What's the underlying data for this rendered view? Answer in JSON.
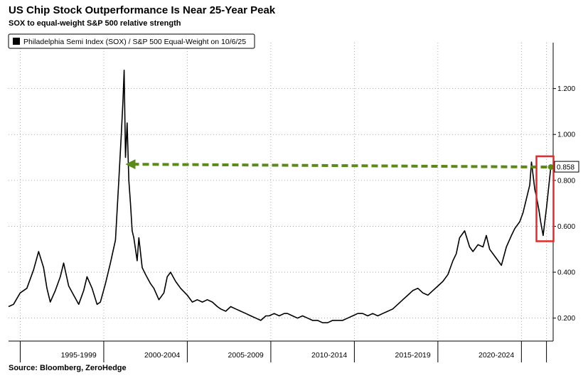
{
  "header": {
    "title": "US Chip Stock Outperformance Is Near 25-Year Peak",
    "subtitle": "SOX to equal-weight S&P 500 relative strength"
  },
  "source": "Source:  Bloomberg, ZeroHedge",
  "colors": {
    "series": "#000000",
    "arrow": "#5a8a17",
    "highlight_box": "#e32b2b"
  },
  "chart_data": {
    "type": "line",
    "title": "US Chip Stock Outperformance Is Near 25-Year Peak",
    "legend": "Philadelphia Semi Index (SOX) / S&P 500 Equal-Weight  on 10/6/25",
    "ylim": [
      0.1,
      1.4
    ],
    "yticks": [
      0.2,
      0.4,
      0.6,
      0.8,
      1.0,
      1.2
    ],
    "ytick_labels": [
      "0.200",
      "0.400",
      "0.600",
      "0.800",
      "1.000",
      "1.200"
    ],
    "xlim": [
      1993.3,
      2025.9
    ],
    "x_groups": [
      {
        "label": "1995-1999",
        "center": 1997.5
      },
      {
        "label": "2000-2004",
        "center": 2002.5
      },
      {
        "label": "2005-2009",
        "center": 2007.5
      },
      {
        "label": "2010-2014",
        "center": 2012.5
      },
      {
        "label": "2015-2019",
        "center": 2017.5
      },
      {
        "label": "2020-2024",
        "center": 2022.5
      }
    ],
    "x_boundaries": [
      1994.0,
      1999.0,
      2004.0,
      2009.0,
      2014.0,
      2019.0,
      2024.0,
      2025.5
    ],
    "last_value_label": "0.858",
    "series": [
      {
        "name": "Philadelphia Semi Index (SOX) / S&P 500 Equal-Weight",
        "x": [
          1993.3,
          1993.6,
          1994.0,
          1994.4,
          1994.8,
          1995.1,
          1995.4,
          1995.6,
          1995.8,
          1996.1,
          1996.4,
          1996.6,
          1996.9,
          1997.2,
          1997.5,
          1997.8,
          1998.0,
          1998.3,
          1998.6,
          1998.8,
          1999.1,
          1999.4,
          1999.7,
          1999.9,
          2000.05,
          2000.15,
          2000.22,
          2000.3,
          2000.4,
          2000.5,
          2000.6,
          2000.7,
          2000.8,
          2000.9,
          2001.0,
          2001.1,
          2001.3,
          2001.5,
          2001.8,
          2002.0,
          2002.3,
          2002.6,
          2002.8,
          2003.0,
          2003.3,
          2003.6,
          2004.0,
          2004.3,
          2004.6,
          2004.9,
          2005.2,
          2005.5,
          2005.8,
          2006.0,
          2006.3,
          2006.6,
          2006.9,
          2007.2,
          2007.5,
          2007.8,
          2008.1,
          2008.4,
          2008.7,
          2008.9,
          2009.2,
          2009.5,
          2009.8,
          2010.0,
          2010.3,
          2010.6,
          2010.9,
          2011.2,
          2011.5,
          2011.8,
          2012.1,
          2012.4,
          2012.7,
          2013.0,
          2013.3,
          2013.6,
          2013.9,
          2014.2,
          2014.5,
          2014.8,
          2015.1,
          2015.4,
          2015.7,
          2016.0,
          2016.3,
          2016.6,
          2016.9,
          2017.2,
          2017.5,
          2017.8,
          2018.1,
          2018.4,
          2018.7,
          2019.0,
          2019.3,
          2019.6,
          2019.9,
          2020.1,
          2020.3,
          2020.6,
          2020.9,
          2021.1,
          2021.4,
          2021.7,
          2021.9,
          2022.1,
          2022.4,
          2022.6,
          2022.8,
          2023.1,
          2023.4,
          2023.6,
          2023.9,
          2024.1,
          2024.3,
          2024.5,
          2024.6,
          2024.8,
          2024.9,
          2025.05,
          2025.15,
          2025.3,
          2025.5,
          2025.6,
          2025.76
        ],
        "y": [
          0.25,
          0.26,
          0.31,
          0.33,
          0.41,
          0.49,
          0.42,
          0.33,
          0.27,
          0.32,
          0.38,
          0.44,
          0.34,
          0.3,
          0.26,
          0.32,
          0.38,
          0.33,
          0.26,
          0.27,
          0.35,
          0.44,
          0.54,
          0.8,
          1.0,
          1.15,
          1.28,
          0.9,
          1.05,
          0.8,
          0.7,
          0.58,
          0.55,
          0.5,
          0.45,
          0.55,
          0.42,
          0.39,
          0.35,
          0.33,
          0.28,
          0.31,
          0.38,
          0.4,
          0.36,
          0.33,
          0.3,
          0.27,
          0.28,
          0.27,
          0.28,
          0.27,
          0.25,
          0.24,
          0.23,
          0.25,
          0.24,
          0.23,
          0.22,
          0.21,
          0.2,
          0.19,
          0.21,
          0.21,
          0.22,
          0.21,
          0.22,
          0.22,
          0.21,
          0.2,
          0.21,
          0.2,
          0.19,
          0.19,
          0.18,
          0.18,
          0.19,
          0.19,
          0.19,
          0.2,
          0.21,
          0.22,
          0.22,
          0.21,
          0.22,
          0.21,
          0.22,
          0.23,
          0.24,
          0.26,
          0.28,
          0.3,
          0.32,
          0.33,
          0.31,
          0.3,
          0.32,
          0.34,
          0.36,
          0.39,
          0.45,
          0.48,
          0.55,
          0.58,
          0.51,
          0.49,
          0.52,
          0.51,
          0.56,
          0.5,
          0.47,
          0.45,
          0.43,
          0.51,
          0.56,
          0.59,
          0.62,
          0.66,
          0.72,
          0.78,
          0.88,
          0.76,
          0.73,
          0.67,
          0.62,
          0.56,
          0.68,
          0.75,
          0.858
        ]
      }
    ]
  }
}
